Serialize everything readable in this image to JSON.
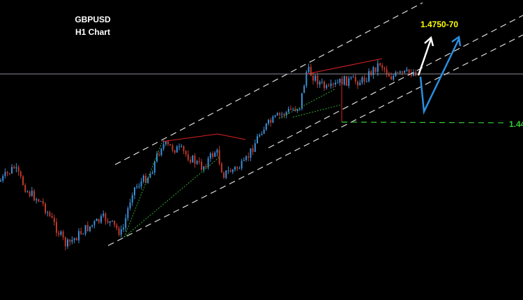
{
  "header": {
    "symbol": "GBPUSD",
    "timeframe": "H1 Chart"
  },
  "annotations": {
    "target": "1.4750-70",
    "support": "1.44"
  }
}
